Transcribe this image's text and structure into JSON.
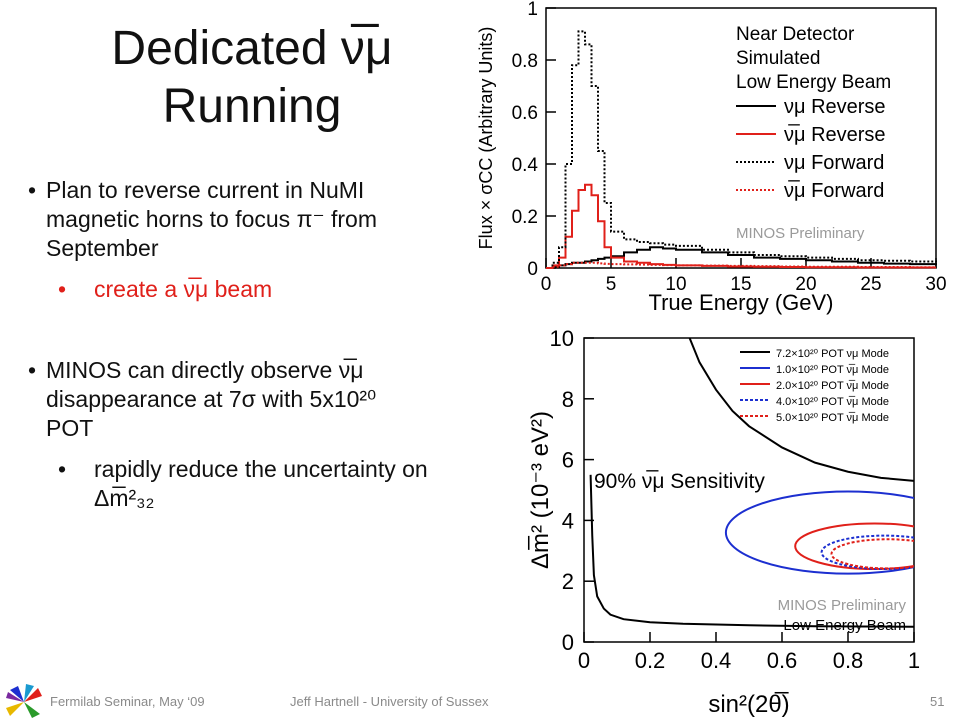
{
  "slide": {
    "title_line1": "Dedicated ν̅μ",
    "title_line2": "Running",
    "bullet1": "Plan to reverse current in NuMI magnetic horns to focus π⁻ from September",
    "bullet1_sub": "create a ν̅μ beam",
    "bullet2": "MINOS can directly observe ν̅μ disappearance at 7σ with 5x10²⁰ POT",
    "bullet2_sub": "rapidly reduce the uncertainty on Δm̅²₃₂"
  },
  "footer": {
    "left": "Fermilab Seminar, May ‘09",
    "center": "Jeff Hartnell - University of Sussex",
    "page": "51",
    "logo": "pinwheel-logo"
  },
  "chart_data": [
    {
      "type": "line",
      "xlabel": "True Energy (GeV)",
      "ylabel": "Flux × σCC (Arbitrary Units)",
      "xlim": [
        0,
        30
      ],
      "ylim": [
        0,
        1
      ],
      "xticks": [
        "0",
        "5",
        "10",
        "15",
        "20",
        "25",
        "30"
      ],
      "yticks": [
        "0",
        "0.2",
        "0.4",
        "0.6",
        "0.8",
        "1"
      ],
      "legend_header": [
        "Near Detector",
        "Simulated",
        "Low Energy Beam"
      ],
      "legend_position": "top-right",
      "annotation": "MINOS Preliminary",
      "x": [
        0,
        0.5,
        1,
        1.5,
        2,
        2.5,
        3,
        3.5,
        4,
        4.5,
        5,
        6,
        7,
        8,
        9,
        10,
        12,
        14,
        16,
        18,
        20,
        22,
        24,
        26,
        28,
        30
      ],
      "series": [
        {
          "name": "νμ Reverse",
          "color": "#000000",
          "dash": "solid",
          "values": [
            0,
            0.005,
            0.01,
            0.015,
            0.02,
            0.02,
            0.025,
            0.03,
            0.035,
            0.04,
            0.045,
            0.06,
            0.07,
            0.08,
            0.075,
            0.07,
            0.06,
            0.05,
            0.04,
            0.035,
            0.03,
            0.025,
            0.02,
            0.017,
            0.015,
            0.012
          ]
        },
        {
          "name": "ν̅μ Reverse",
          "color": "#e0201a",
          "dash": "solid",
          "values": [
            0,
            0.01,
            0.04,
            0.12,
            0.22,
            0.3,
            0.32,
            0.28,
            0.18,
            0.08,
            0.04,
            0.025,
            0.02,
            0.015,
            0.012,
            0.01,
            0.008,
            0.006,
            0.005,
            0.004,
            0.003,
            0.003,
            0.002,
            0.002,
            0.002,
            0.002
          ]
        },
        {
          "name": "νμ Forward",
          "color": "#000000",
          "dash": "dotted",
          "values": [
            0,
            0.02,
            0.08,
            0.4,
            0.78,
            0.91,
            0.86,
            0.7,
            0.45,
            0.25,
            0.14,
            0.11,
            0.1,
            0.095,
            0.09,
            0.085,
            0.07,
            0.06,
            0.05,
            0.045,
            0.04,
            0.035,
            0.03,
            0.028,
            0.025,
            0.022
          ]
        },
        {
          "name": "ν̅μ Forward",
          "color": "#e0201a",
          "dash": "dotted",
          "values": [
            0,
            0.005,
            0.01,
            0.015,
            0.02,
            0.02,
            0.02,
            0.02,
            0.018,
            0.016,
            0.015,
            0.014,
            0.013,
            0.012,
            0.011,
            0.01,
            0.009,
            0.008,
            0.007,
            0.006,
            0.005,
            0.005,
            0.004,
            0.004,
            0.003,
            0.003
          ]
        }
      ]
    },
    {
      "type": "line",
      "xlabel": "sin²(2θ̅)",
      "ylabel": "Δm̅² (10⁻³ eV²)",
      "xlim": [
        0,
        1
      ],
      "ylim": [
        0,
        10
      ],
      "xticks": [
        "0",
        "0.2",
        "0.4",
        "0.6",
        "0.8",
        "1"
      ],
      "yticks": [
        "0",
        "2",
        "4",
        "6",
        "8",
        "10"
      ],
      "inner_title": "90% ν̅μ Sensitivity",
      "annotation": [
        "MINOS Preliminary",
        "Low Energy Beam"
      ],
      "legend_position": "top-right",
      "series": [
        {
          "name": "7.2×10²⁰ POT νμ Mode",
          "color": "#000000",
          "dash": "solid",
          "kind": "boundary",
          "x": [
            0.32,
            0.35,
            0.4,
            0.45,
            0.5,
            0.6,
            0.7,
            0.8,
            0.9,
            1.0
          ],
          "y": [
            10.0,
            9.2,
            8.3,
            7.6,
            7.1,
            6.4,
            5.9,
            5.6,
            5.4,
            5.3
          ]
        },
        {
          "name": "7.2×10²⁰ POT νμ Mode (lower)",
          "color": "#000000",
          "dash": "solid",
          "kind": "boundary",
          "x": [
            0.02,
            0.025,
            0.03,
            0.04,
            0.06,
            0.08,
            0.12,
            0.2,
            0.3,
            0.5,
            0.7,
            1.0
          ],
          "y": [
            5.5,
            3.5,
            2.2,
            1.5,
            1.1,
            0.9,
            0.75,
            0.65,
            0.6,
            0.55,
            0.52,
            0.5
          ]
        },
        {
          "name": "1.0×10²⁰ POT ν̅μ Mode",
          "color": "#1c2fd0",
          "dash": "solid",
          "kind": "ellipse",
          "cx": 0.8,
          "cy": 3.6,
          "rx": 0.37,
          "ry": 1.35
        },
        {
          "name": "2.0×10²⁰ POT ν̅μ Mode",
          "color": "#e0201a",
          "dash": "solid",
          "kind": "ellipse",
          "cx": 0.88,
          "cy": 3.15,
          "rx": 0.24,
          "ry": 0.75
        },
        {
          "name": "4.0×10²⁰ POT ν̅μ Mode",
          "color": "#1c2fd0",
          "dash": "dotted",
          "kind": "ellipse",
          "cx": 0.91,
          "cy": 2.95,
          "rx": 0.19,
          "ry": 0.55
        },
        {
          "name": "5.0×10²⁰ POT ν̅μ Mode",
          "color": "#e0201a",
          "dash": "dotted",
          "kind": "ellipse",
          "cx": 0.92,
          "cy": 2.9,
          "rx": 0.17,
          "ry": 0.48
        }
      ]
    }
  ]
}
